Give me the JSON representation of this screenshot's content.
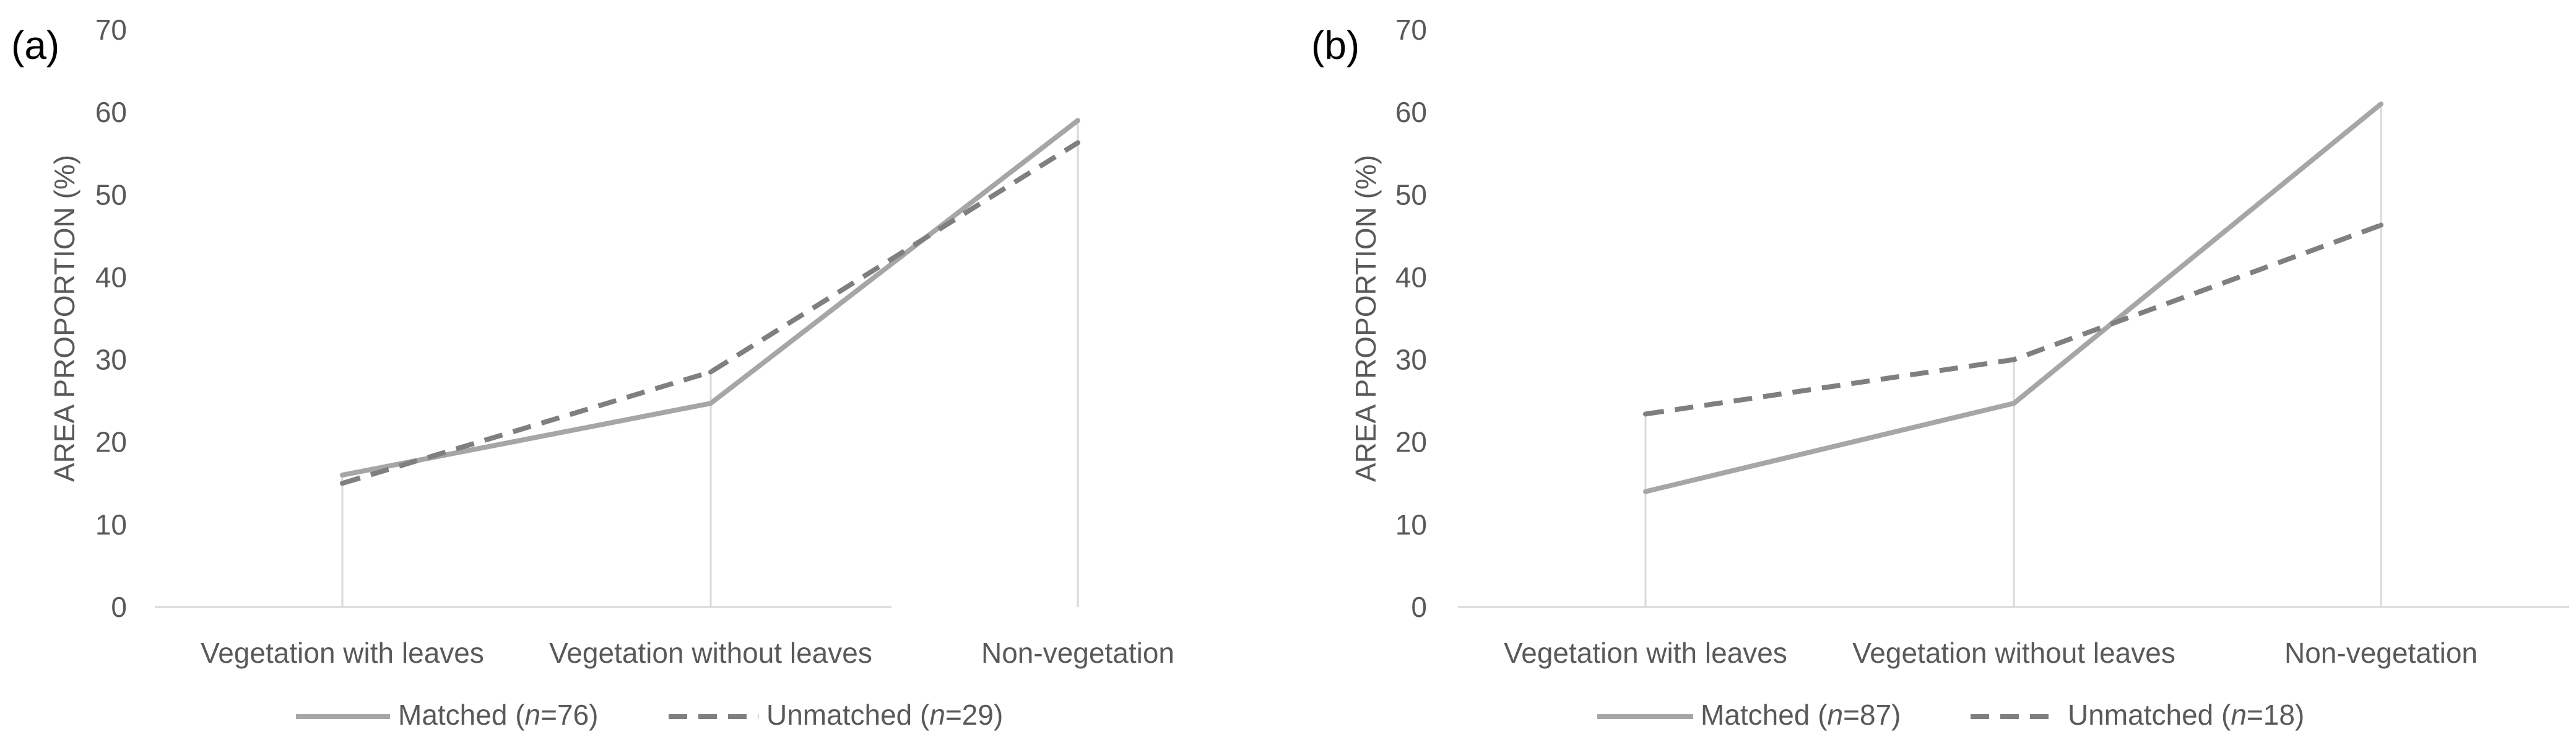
{
  "chart_data": [
    {
      "panel_label": "(a)",
      "type": "line",
      "categories": [
        "Vegetation with leaves",
        "Vegetation without leaves",
        "Non-vegetation"
      ],
      "ylabel": "AREA PROPORTION (%)",
      "ylim": [
        0,
        70
      ],
      "yticks": [
        0,
        10,
        20,
        30,
        40,
        50,
        60,
        70
      ],
      "grid": false,
      "drop_lines": true,
      "legend_position": "bottom",
      "series": [
        {
          "name": "Matched",
          "n_label": "n",
          "n_value": "=76)",
          "prefix": "Matched (",
          "style": "solid",
          "color": "#a6a6a6",
          "values": [
            16.0,
            24.7,
            59.0
          ]
        },
        {
          "name": "Unmatched",
          "n_label": "n",
          "n_value": "=29)",
          "prefix": "Unmatched (",
          "style": "dashed",
          "color": "#7f7f7f",
          "values": [
            15.0,
            28.5,
            56.3
          ]
        }
      ]
    },
    {
      "panel_label": "(b)",
      "type": "line",
      "categories": [
        "Vegetation with leaves",
        "Vegetation without leaves",
        "Non-vegetation"
      ],
      "ylabel": "AREA PROPORTION (%)",
      "ylim": [
        0,
        70
      ],
      "yticks": [
        0,
        10,
        20,
        30,
        40,
        50,
        60,
        70
      ],
      "grid": false,
      "drop_lines": true,
      "legend_position": "bottom",
      "series": [
        {
          "name": "Matched",
          "n_label": "n",
          "n_value": "=87)",
          "prefix": "Matched (",
          "style": "solid",
          "color": "#a6a6a6",
          "values": [
            14.0,
            24.7,
            61.0
          ]
        },
        {
          "name": "Unmatched",
          "n_label": "n",
          "n_value": "=18)",
          "prefix": "Unmatched (",
          "style": "dashed",
          "color": "#7f7f7f",
          "values": [
            23.4,
            30.0,
            46.3
          ]
        }
      ]
    }
  ]
}
